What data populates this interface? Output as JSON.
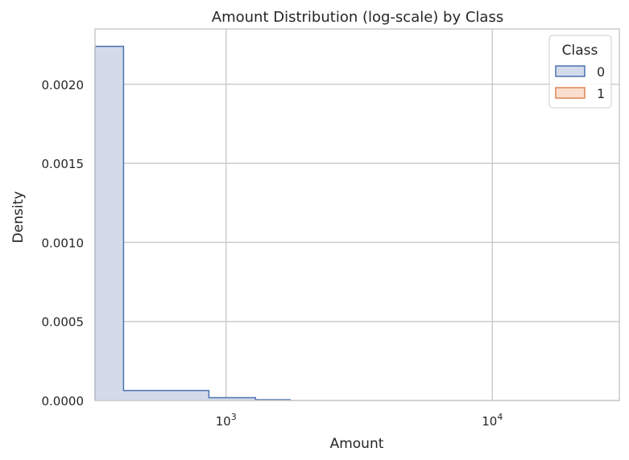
{
  "chart_data": {
    "type": "bar",
    "title": "Amount Distribution (log-scale) by Class",
    "xlabel": "Amount",
    "ylabel": "Density",
    "x_scale": "log",
    "xlim": [
      322,
      30000
    ],
    "ylim": [
      0,
      0.00235
    ],
    "grid": true,
    "x_ticks": [
      {
        "value": 1000,
        "base": "10",
        "exp": "3"
      },
      {
        "value": 10000,
        "base": "10",
        "exp": "4"
      }
    ],
    "y_ticks": [
      {
        "value": 0,
        "label": "0.0000"
      },
      {
        "value": 0.0005,
        "label": "0.0005"
      },
      {
        "value": 0.001,
        "label": "0.0010"
      },
      {
        "value": 0.0015,
        "label": "0.0015"
      },
      {
        "value": 0.002,
        "label": "0.0020"
      }
    ],
    "legend": {
      "title": "Class",
      "placement": "top-right",
      "entries": [
        {
          "label": "0",
          "edge": "#4c72b0",
          "fill": "#d3dbea"
        },
        {
          "label": "1",
          "edge": "#dd8452",
          "fill": "#fadfd1"
        }
      ]
    },
    "series": [
      {
        "name": "0",
        "edge_color": "#4c72b0",
        "fill_color": "#d3dbea",
        "bins": [
          {
            "x0": 322,
            "x1": 412,
            "density": 0.00224
          },
          {
            "x0": 412,
            "x1": 862,
            "density": 6.3e-05
          },
          {
            "x0": 862,
            "x1": 1290,
            "density": 1.8e-05
          },
          {
            "x0": 1290,
            "x1": 1740,
            "density": 5e-06
          }
        ]
      },
      {
        "name": "1",
        "edge_color": "#dd8452",
        "fill_color": "#fadfd1",
        "bins": []
      }
    ]
  }
}
